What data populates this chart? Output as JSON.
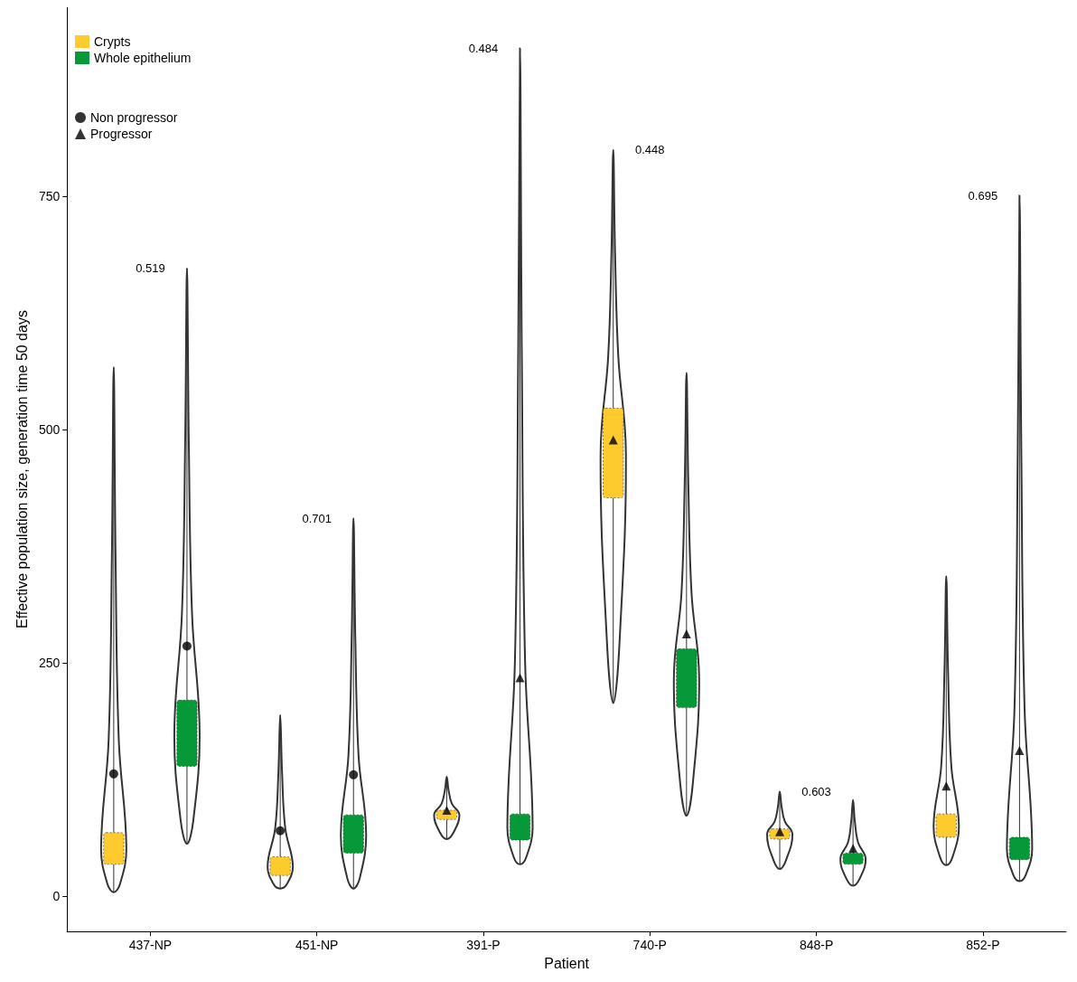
{
  "chart_data": {
    "type": "box",
    "xlabel": "Patient",
    "ylabel": "Effective population size, generation time 50 days",
    "categories": [
      "437-NP",
      "451-NP",
      "391-P",
      "740-P",
      "848-P",
      "852-P"
    ],
    "ylim": [
      -38,
      953
    ],
    "yticks": [
      0,
      250,
      500,
      750
    ],
    "grid": false,
    "legend": "top left",
    "series": [
      {
        "name": "Crypts",
        "color": "#fdcb2e",
        "boxes": [
          {
            "low": 4,
            "q1": 34,
            "q3": 68,
            "high": 567
          },
          {
            "low": 8,
            "q1": 22,
            "q3": 42,
            "high": 194
          },
          {
            "low": 61,
            "q1": 82,
            "q3": 92,
            "high": 128
          },
          {
            "low": 207,
            "q1": 427,
            "q3": 523,
            "high": 800
          },
          {
            "low": 29,
            "q1": 61,
            "q3": 72,
            "high": 112
          },
          {
            "low": 33,
            "q1": 63,
            "q3": 88,
            "high": 343
          }
        ]
      },
      {
        "name": "Whole epithelium",
        "color": "#079939",
        "boxes": [
          {
            "low": 56,
            "q1": 139,
            "q3": 210,
            "high": 673
          },
          {
            "low": 8,
            "q1": 46,
            "q3": 87,
            "high": 405
          },
          {
            "low": 34,
            "q1": 60,
            "q3": 88,
            "high": 909
          },
          {
            "low": 86,
            "q1": 202,
            "q3": 265,
            "high": 561
          },
          {
            "low": 11,
            "q1": 34,
            "q3": 46,
            "high": 103
          },
          {
            "low": 16,
            "q1": 39,
            "q3": 63,
            "high": 751
          }
        ]
      },
      {
        "name": "Non progressor",
        "type": "scatter",
        "marker": "circle",
        "color": "#000000",
        "x": [
          "437-NP",
          "437-NP",
          "451-NP",
          "451-NP"
        ],
        "values": [
          131,
          268,
          70,
          130
        ]
      },
      {
        "name": "Progressor",
        "type": "scatter",
        "marker": "triangle",
        "color": "#000000",
        "x": [
          "391-P",
          "391-P",
          "740-P",
          "740-P",
          "848-P",
          "848-P",
          "852-P",
          "852-P"
        ],
        "values": [
          92,
          234,
          489,
          281,
          69,
          51,
          118,
          156
        ]
      }
    ],
    "annotations": [
      "0.519",
      "0.701",
      "0.484",
      "0.448",
      "0.603",
      "0.695"
    ]
  }
}
